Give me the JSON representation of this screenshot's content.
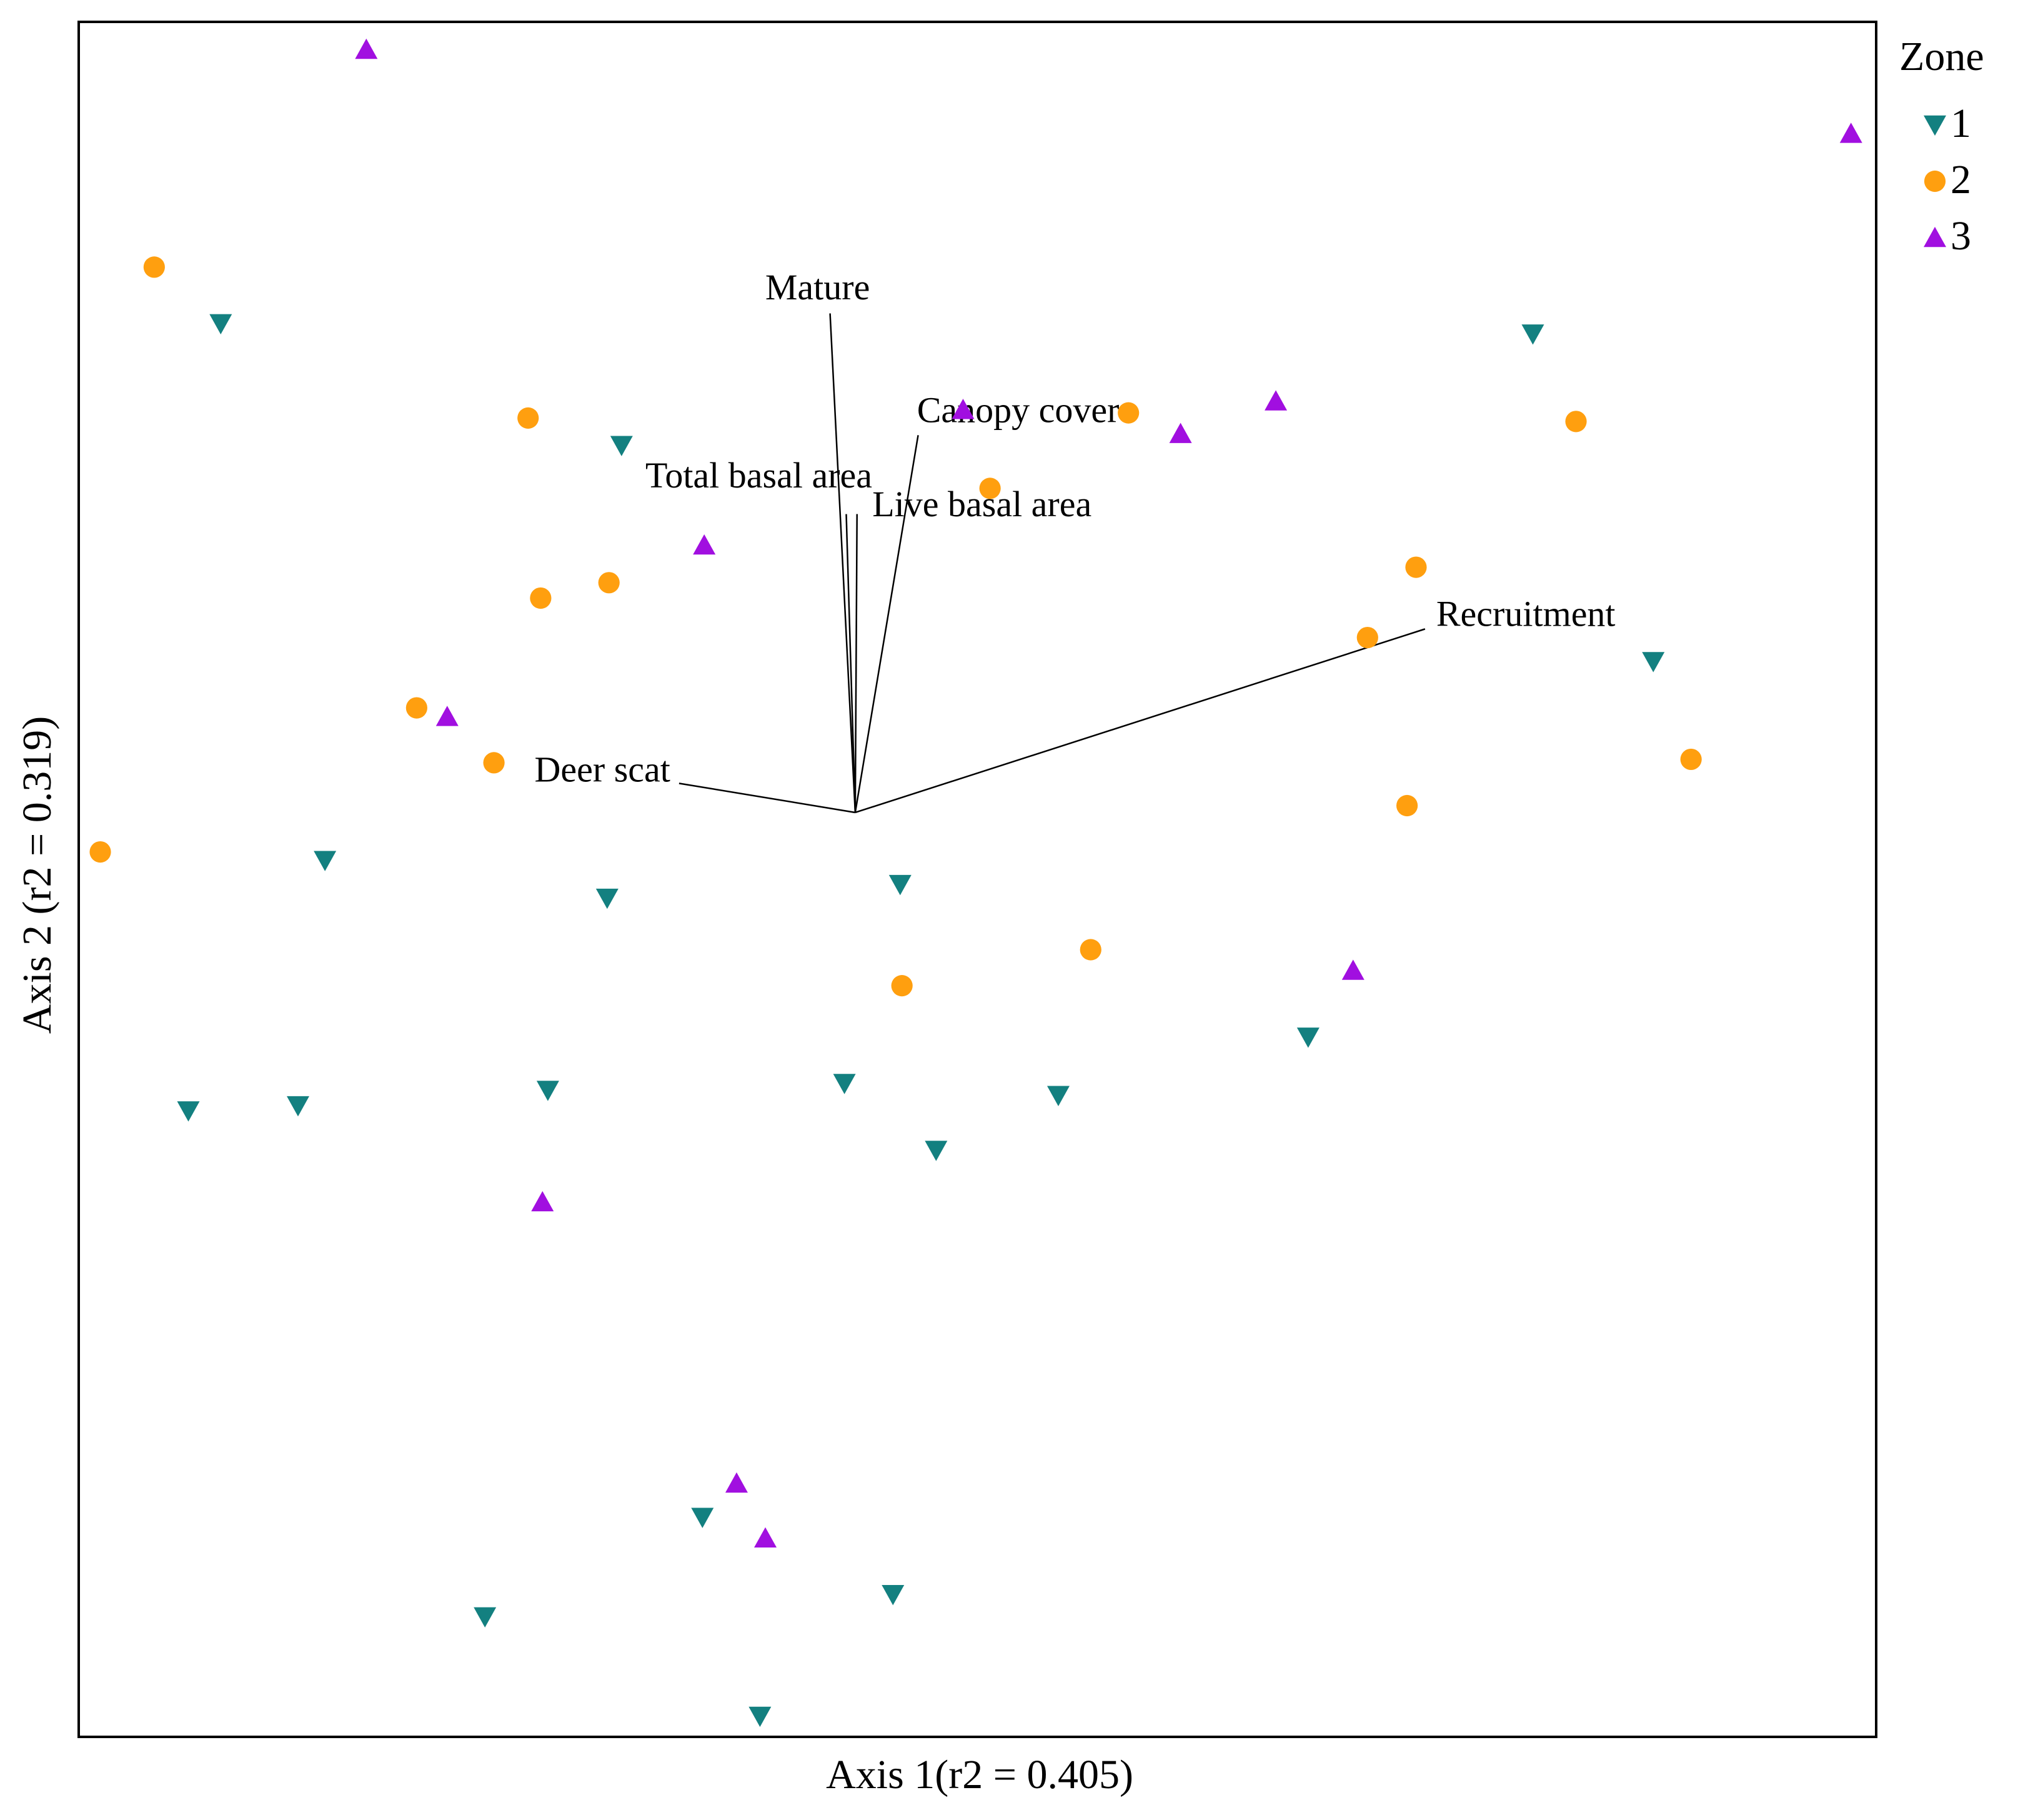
{
  "chart_data": {
    "type": "scatter",
    "x_label": "Axis 1(r2 = 0.405)",
    "y_label": "Axis 2 (r2 = 0.319)",
    "xlim": [
      0,
      100
    ],
    "ylim": [
      0,
      100
    ],
    "legend_title": "Zone",
    "legend_position": "right",
    "series": [
      {
        "name": "1",
        "color": "#138080",
        "marker": "triangle-down",
        "x": [
          7.9,
          30.2,
          80.9,
          87.6,
          13.7,
          29.4,
          45.7,
          6.1,
          12.2,
          26.1,
          42.6,
          54.5,
          47.7,
          68.4,
          34.7,
          22.6,
          45.3,
          37.9
        ],
        "y": [
          82.4,
          75.3,
          81.8,
          62.7,
          51.1,
          48.9,
          49.7,
          36.5,
          36.8,
          37.7,
          38.1,
          37.4,
          34.2,
          40.8,
          12.8,
          7.0,
          8.3,
          1.2
        ]
      },
      {
        "name": "2",
        "color": "#ff9f0f",
        "marker": "circle",
        "x": [
          4.2,
          25.0,
          58.4,
          83.3,
          50.7,
          74.4,
          29.5,
          25.7,
          71.7,
          18.8,
          23.1,
          89.7,
          1.2,
          73.9,
          56.3,
          45.8
        ],
        "y": [
          85.7,
          76.9,
          77.2,
          76.7,
          72.8,
          68.2,
          67.3,
          66.4,
          64.1,
          60.0,
          56.8,
          57.0,
          51.6,
          54.3,
          45.9,
          43.8
        ]
      },
      {
        "name": "3",
        "color": "#a10fe0",
        "marker": "triangle-up",
        "x": [
          16.0,
          98.6,
          49.2,
          66.6,
          61.3,
          34.8,
          20.5,
          70.9,
          25.8,
          36.6,
          38.2
        ],
        "y": [
          98.4,
          93.5,
          77.4,
          77.9,
          76.0,
          69.5,
          59.5,
          44.7,
          31.2,
          14.8,
          11.6
        ]
      }
    ],
    "origin": [
      43.2,
      53.9
    ],
    "vectors": [
      {
        "name": "Mature",
        "x": 41.8,
        "y": 83.0
      },
      {
        "name": "Total basal area",
        "x": 42.7,
        "y": 71.3
      },
      {
        "name": "Canopy cover",
        "x": 46.7,
        "y": 75.9
      },
      {
        "name": "Live basal area",
        "x": 43.3,
        "y": 71.3
      },
      {
        "name": "Recruitment",
        "x": 74.9,
        "y": 64.6
      },
      {
        "name": "Deer scat",
        "x": 33.4,
        "y": 55.6
      }
    ]
  }
}
